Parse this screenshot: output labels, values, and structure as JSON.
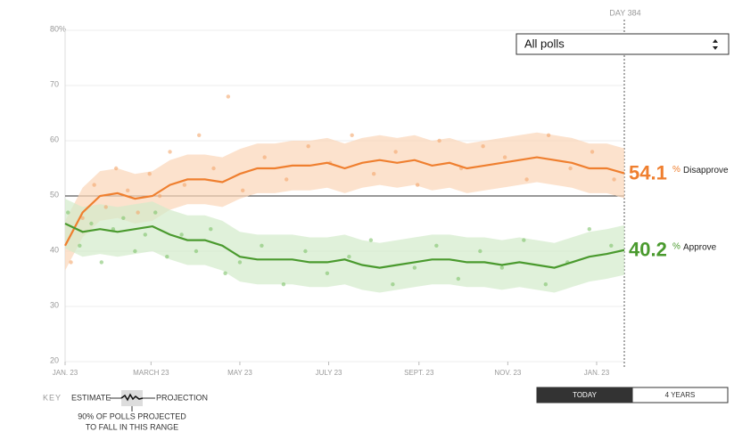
{
  "chart_data": {
    "type": "line",
    "filter": "All polls",
    "current_day_label": "DAY 384",
    "unit": "%",
    "reference_line": 50,
    "x": [
      0,
      12,
      24,
      36,
      48,
      60,
      72,
      84,
      96,
      108,
      120,
      132,
      144,
      156,
      168,
      180,
      192,
      204,
      216,
      228,
      240,
      252,
      264,
      276,
      288,
      300,
      312,
      324,
      336,
      348,
      360,
      372,
      384
    ],
    "xlim": [
      0,
      384
    ],
    "xticks": [
      {
        "value": 0,
        "label": "JAN. 23"
      },
      {
        "value": 59,
        "label": "MARCH 23"
      },
      {
        "value": 120,
        "label": "MAY 23"
      },
      {
        "value": 181,
        "label": "JULY 23"
      },
      {
        "value": 243,
        "label": "SEPT. 23"
      },
      {
        "value": 304,
        "label": "NOV. 23"
      },
      {
        "value": 365,
        "label": "JAN. 23"
      }
    ],
    "ylim": [
      20,
      80
    ],
    "yticks": [
      20,
      30,
      40,
      50,
      60,
      70,
      {
        "value": 80,
        "label": "80%"
      }
    ],
    "grid": true,
    "series": [
      {
        "name": "Disapprove",
        "color": "#ef7f2f",
        "band_color": "#fbd6b8",
        "dot_color": "#f3a66c",
        "values": [
          41,
          47,
          50,
          50.5,
          49.5,
          50,
          52,
          53,
          53,
          52.5,
          54,
          55,
          55,
          55.5,
          55.5,
          56,
          55,
          56,
          56.5,
          56,
          56.5,
          55.5,
          56,
          55,
          55.5,
          56,
          56.5,
          57,
          56.5,
          56,
          55,
          55,
          54.1
        ],
        "band_lower": [
          36.5,
          42.5,
          45.5,
          46,
          45,
          45.5,
          47.5,
          48.5,
          48.5,
          48,
          49.5,
          50.5,
          50.5,
          51,
          51,
          51.5,
          50.5,
          51.5,
          52,
          51.5,
          52,
          51,
          51.5,
          50.5,
          51,
          51.5,
          52,
          52.5,
          52,
          51.5,
          50.5,
          50.5,
          49.6
        ],
        "band_upper": [
          45.5,
          51.5,
          54.5,
          55,
          54,
          54.5,
          56.5,
          57.5,
          57.5,
          57,
          58.5,
          59.5,
          59.5,
          60,
          60,
          60.5,
          59.5,
          60.5,
          61,
          60.5,
          61,
          60,
          60.5,
          59.5,
          60,
          60.5,
          61,
          61.5,
          61,
          60.5,
          59.5,
          59.5,
          58.6
        ],
        "polls": {
          "x": [
            4,
            12,
            20,
            28,
            35,
            43,
            50,
            58,
            65,
            72,
            82,
            92,
            102,
            112,
            122,
            137,
            152,
            167,
            182,
            197,
            212,
            227,
            242,
            257,
            272,
            287,
            302,
            317,
            332,
            347,
            362,
            377
          ],
          "values": [
            38,
            46,
            52,
            48,
            55,
            51,
            47,
            54,
            50,
            58,
            52,
            61,
            55,
            68,
            51,
            57,
            53,
            59,
            56,
            61,
            54,
            58,
            52,
            60,
            55,
            59,
            57,
            53,
            61,
            55,
            58,
            53
          ]
        }
      },
      {
        "name": "Approve",
        "color": "#4a9a2e",
        "band_color": "#d3ebcb",
        "dot_color": "#7fc36a",
        "values": [
          45,
          43.5,
          44,
          43.5,
          44,
          44.5,
          43,
          42,
          42,
          41,
          39,
          38.5,
          38.5,
          38.5,
          38,
          38,
          38.5,
          37.5,
          37,
          37.5,
          38,
          38.5,
          38.5,
          38,
          38,
          37.5,
          38,
          37.5,
          37,
          38,
          39,
          39.5,
          40.2
        ],
        "band_lower": [
          40.5,
          39,
          39.5,
          39,
          39.5,
          40,
          38.5,
          37.5,
          37.5,
          36.5,
          34.5,
          34,
          34,
          34,
          33.5,
          33.5,
          34,
          33,
          32.5,
          33,
          33.5,
          34,
          34,
          33.5,
          33.5,
          33,
          33.5,
          33,
          32.5,
          33.5,
          34.5,
          35,
          35.7
        ],
        "band_upper": [
          49.5,
          48,
          48.5,
          48,
          48.5,
          49,
          47.5,
          46.5,
          46.5,
          45.5,
          43.5,
          43,
          43,
          43,
          42.5,
          42.5,
          43,
          42,
          41.5,
          42,
          42.5,
          43,
          43,
          42.5,
          42.5,
          42,
          42.5,
          42,
          41.5,
          42.5,
          43.5,
          44,
          44.7
        ],
        "polls": {
          "x": [
            2,
            10,
            18,
            25,
            33,
            40,
            48,
            55,
            62,
            70,
            80,
            90,
            100,
            110,
            120,
            135,
            150,
            165,
            180,
            195,
            210,
            225,
            240,
            255,
            270,
            285,
            300,
            315,
            330,
            345,
            360,
            375
          ],
          "values": [
            47,
            41,
            45,
            38,
            44,
            46,
            40,
            43,
            47,
            39,
            43,
            40,
            44,
            36,
            38,
            41,
            34,
            40,
            36,
            39,
            42,
            34,
            37,
            41,
            35,
            40,
            37,
            42,
            34,
            38,
            44,
            41
          ]
        }
      }
    ],
    "range_buttons": [
      {
        "label": "TODAY",
        "active": true
      },
      {
        "label": "4 YEARS",
        "active": false
      }
    ],
    "key": {
      "title": "KEY",
      "estimate": "ESTIMATE",
      "projection": "PROJECTION",
      "range_note": [
        "90% OF POLLS PROJECTED",
        "TO FALL IN THIS RANGE"
      ]
    }
  }
}
